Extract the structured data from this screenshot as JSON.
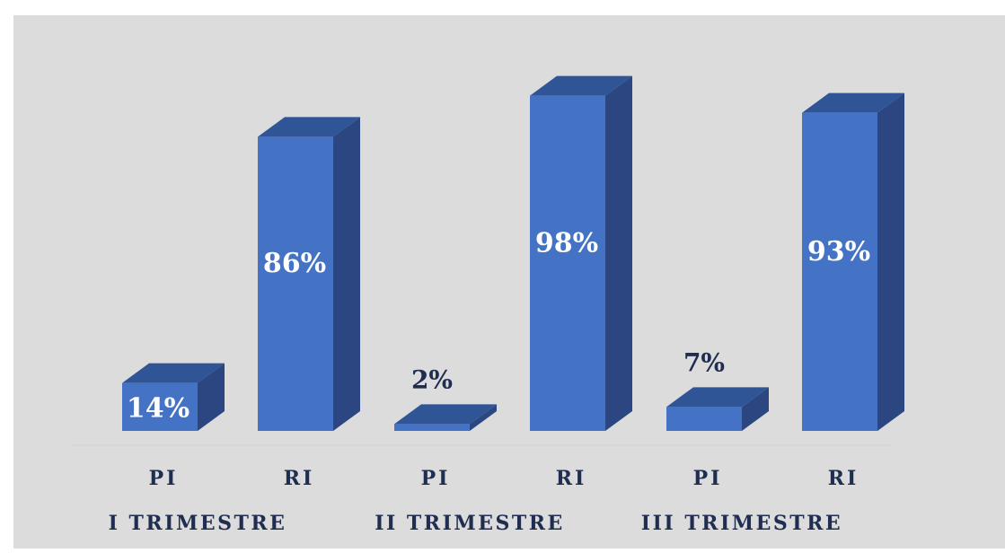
{
  "chart_data": {
    "type": "bar",
    "style": "3d-column",
    "groups": [
      "I TRIMESTRE",
      "II TRIMESTRE",
      "III TRIMESTRE"
    ],
    "subcategories": [
      "PI",
      "RI"
    ],
    "values": [
      [
        14,
        86
      ],
      [
        2,
        98
      ],
      [
        7,
        93
      ]
    ],
    "labels": [
      [
        "14%",
        "86%"
      ],
      [
        "2%",
        "98%"
      ],
      [
        "7%",
        "93%"
      ]
    ],
    "unit": "%",
    "ylim": [
      0,
      100
    ],
    "grid": false,
    "legend": "none"
  },
  "colors": {
    "background": "#dcdcdc",
    "bar_front": "#4472c4",
    "bar_top": "#2f5597",
    "bar_side": "#2b4680",
    "label_dark": "#1f2d50",
    "label_light": "#ffffff",
    "axis_text": "#1f2d50"
  }
}
